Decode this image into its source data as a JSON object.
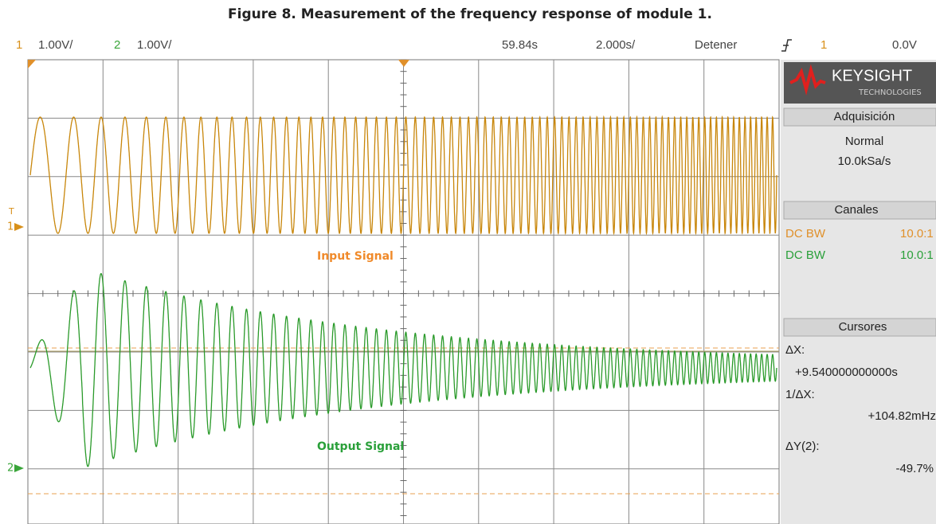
{
  "title": "Figure 8. Measurement of the frequency response of module 1.",
  "top_bar": {
    "ch1_label": "1",
    "ch1_scale": "1.00V/",
    "ch2_label": "2",
    "ch2_scale": "1.00V/",
    "time_position": "59.84s",
    "time_scale": "2.000s/",
    "run_state": "Detener",
    "trigger_source": "1",
    "trigger_level": "0.0V"
  },
  "screen": {
    "ch1_marker": "1",
    "trigger_marker": "T",
    "ch2_marker": "2",
    "input_label": "Input Signal",
    "output_label": "Output Signal"
  },
  "side_panel": {
    "brand": "KEYSIGHT",
    "brand_sub": "TECHNOLOGIES",
    "acquisition": {
      "header": "Adquisición",
      "mode": "Normal",
      "rate": "10.0kSa/s"
    },
    "channels": {
      "header": "Canales",
      "rows": [
        [
          "DC BW",
          "10.0:1"
        ],
        [
          "DC BW",
          "10.0:1"
        ]
      ]
    },
    "cursors": {
      "header": "Cursores",
      "dx_label": "ΔX:",
      "dx_value": "+9.540000000000s",
      "inv_dx_label": "1/ΔX:",
      "inv_dx_value": "+104.82mHz",
      "dy_label": "ΔY(2):",
      "dy_value": "-49.7%"
    }
  }
}
